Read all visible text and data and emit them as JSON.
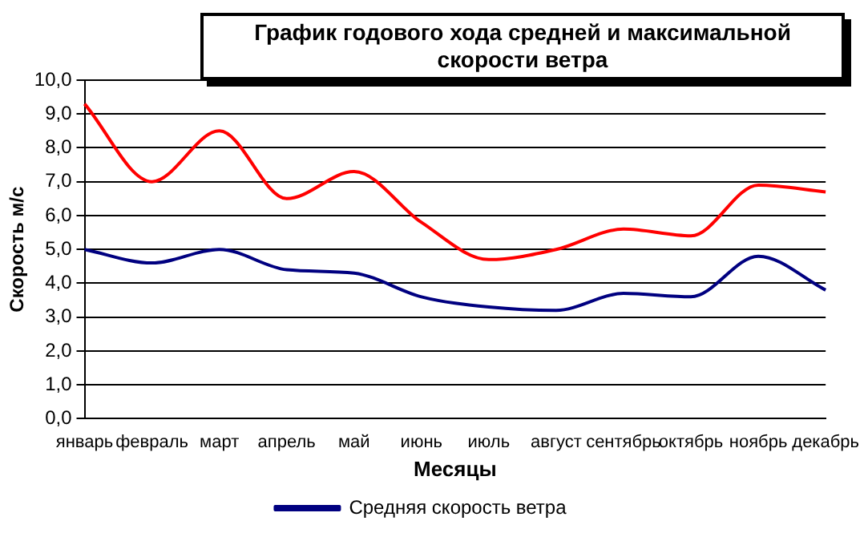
{
  "chart_data": {
    "type": "line",
    "title": "График годового хода средней и максимальной скорости ветра",
    "xlabel": "Месяцы",
    "ylabel": "Скорость м/с",
    "categories": [
      "январь",
      "февраль",
      "март",
      "апрель",
      "май",
      "июнь",
      "июль",
      "август",
      "сентябрь",
      "октябрь",
      "ноябрь",
      "декабрь"
    ],
    "series": [
      {
        "color": "#ff0000",
        "values": [
          9.3,
          7.0,
          8.5,
          6.5,
          7.3,
          5.8,
          4.7,
          5.0,
          5.6,
          5.4,
          6.9,
          6.7
        ]
      },
      {
        "name": "Средняя скорость ветра",
        "color": "#000080",
        "values": [
          5.0,
          4.6,
          5.0,
          4.4,
          4.3,
          3.6,
          3.3,
          3.2,
          3.7,
          3.6,
          4.8,
          3.8
        ]
      }
    ],
    "ylim": [
      0,
      10
    ],
    "yticks": [
      {
        "value": 0,
        "label": "0,0"
      },
      {
        "value": 1,
        "label": "1,0"
      },
      {
        "value": 2,
        "label": "2,0"
      },
      {
        "value": 3,
        "label": "3,0"
      },
      {
        "value": 4,
        "label": "4,0"
      },
      {
        "value": 5,
        "label": "5,0"
      },
      {
        "value": 6,
        "label": "6,0"
      },
      {
        "value": 7,
        "label": "7,0"
      },
      {
        "value": 8,
        "label": "8,0"
      },
      {
        "value": 9,
        "label": "9,0"
      },
      {
        "value": 10,
        "label": "10,0"
      }
    ],
    "grid": "y",
    "legend": "bottom",
    "marker": "none",
    "line_style": "solid"
  }
}
